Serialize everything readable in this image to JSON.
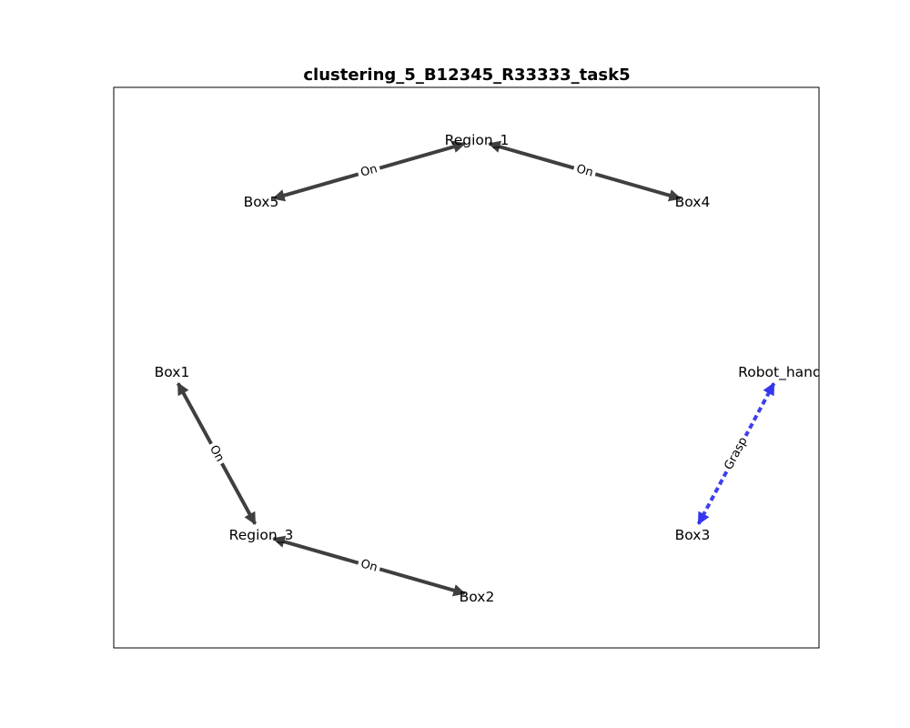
{
  "diagram": {
    "title": "clustering_5_B12345_R33333_task5",
    "nodes": [
      {
        "id": "region_1",
        "label": "Region_1"
      },
      {
        "id": "box5",
        "label": "Box5"
      },
      {
        "id": "box4",
        "label": "Box4"
      },
      {
        "id": "box1",
        "label": "Box1"
      },
      {
        "id": "robot_hand",
        "label": "Robot_hand"
      },
      {
        "id": "region_3",
        "label": "Region_3"
      },
      {
        "id": "box3",
        "label": "Box3"
      },
      {
        "id": "box2",
        "label": "Box2"
      }
    ],
    "edges": [
      {
        "from": "region_1",
        "to": "box5",
        "label": "On",
        "style": "solid",
        "color": "#3f3f3f"
      },
      {
        "from": "region_1",
        "to": "box4",
        "label": "On",
        "style": "solid",
        "color": "#3f3f3f"
      },
      {
        "from": "region_3",
        "to": "box1",
        "label": "On",
        "style": "solid",
        "color": "#3f3f3f"
      },
      {
        "from": "region_3",
        "to": "box2",
        "label": "On",
        "style": "solid",
        "color": "#3f3f3f"
      },
      {
        "from": "robot_hand",
        "to": "box3",
        "label": "Grasp",
        "style": "dashed",
        "color": "#3535ee"
      }
    ]
  }
}
